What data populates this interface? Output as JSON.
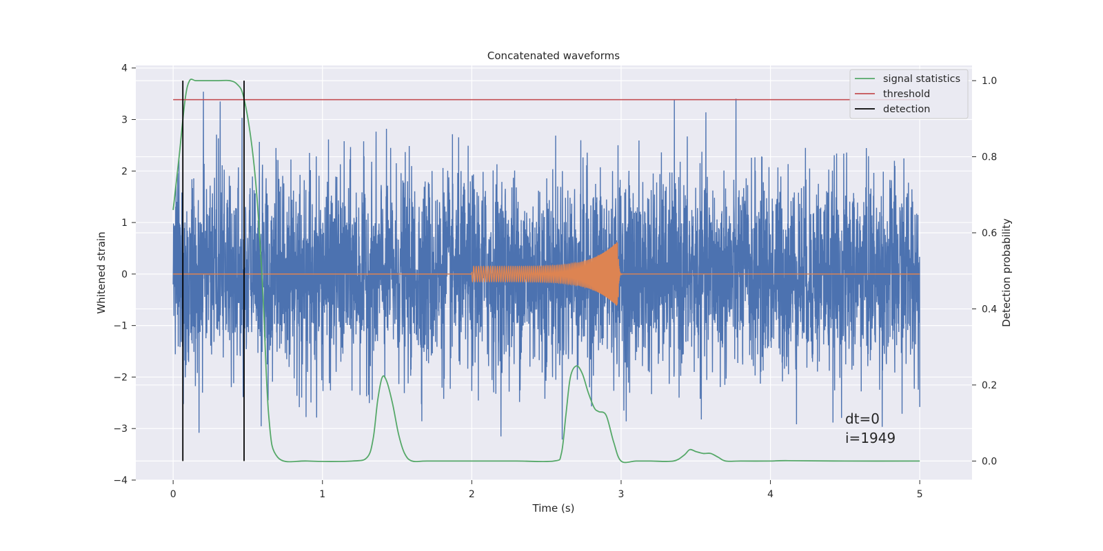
{
  "chart_data": {
    "type": "line",
    "title": "Concatenated waveforms",
    "xlabel": "Time (s)",
    "ylabel_left": "Whitened strain",
    "ylabel_right": "Detection probability",
    "xlim": [
      -0.25,
      5.35
    ],
    "ylim_left": [
      -4,
      4.05
    ],
    "ylim_right": [
      -0.05,
      1.04
    ],
    "x_ticks": [
      0,
      1,
      2,
      3,
      4,
      5
    ],
    "x_tick_labels": [
      "0",
      "1",
      "2",
      "3",
      "4",
      "5"
    ],
    "y_ticks_left": [
      -4,
      -3,
      -2,
      -1,
      0,
      1,
      2,
      3,
      4
    ],
    "y_tick_labels_left": [
      "−4",
      "−3",
      "−2",
      "−1",
      "0",
      "1",
      "2",
      "3",
      "4"
    ],
    "y_ticks_right": [
      0.0,
      0.2,
      0.4,
      0.6,
      0.8,
      1.0
    ],
    "y_tick_labels_right": [
      "0.0",
      "0.2",
      "0.4",
      "0.6",
      "0.8",
      "1.0"
    ],
    "grid": true,
    "legend_position": "top-right",
    "colors": {
      "background": "#eaeaf2",
      "grid": "#ffffff",
      "strain": "#4c72b0",
      "injected_signal": "#dd8452",
      "signal_statistics": "#55a868",
      "threshold": "#c44e52",
      "detection": "#000000"
    },
    "series": [
      {
        "name": "",
        "axis": "left",
        "kind": "noise",
        "x_range": [
          0,
          5
        ],
        "samples": 4096,
        "typical_range": [
          -2.2,
          2.2
        ],
        "extreme_range": [
          -3.7,
          3.7
        ]
      },
      {
        "name": "",
        "axis": "left",
        "kind": "chirp",
        "x_range": [
          2.0,
          3.0
        ],
        "start_amplitude": 0.15,
        "peak_amplitude": 0.65,
        "peak_time": 2.98
      },
      {
        "name": "signal statistics",
        "axis": "right",
        "x": [
          0.0,
          0.04,
          0.08,
          0.11,
          0.15,
          0.2,
          0.3,
          0.38,
          0.43,
          0.47,
          0.52,
          0.56,
          0.6,
          0.64,
          0.7,
          0.9,
          1.2,
          1.3,
          1.34,
          1.37,
          1.4,
          1.43,
          1.47,
          1.51,
          1.55,
          1.6,
          1.7,
          2.0,
          2.3,
          2.55,
          2.6,
          2.63,
          2.66,
          2.7,
          2.74,
          2.78,
          2.82,
          2.85,
          2.9,
          2.95,
          3.0,
          3.1,
          3.2,
          3.35,
          3.42,
          3.46,
          3.5,
          3.55,
          3.6,
          3.65,
          3.7,
          3.8,
          4.0,
          4.1,
          4.5,
          5.0
        ],
        "values": [
          0.66,
          0.8,
          0.95,
          1.0,
          1.0,
          1.0,
          1.0,
          1.0,
          0.99,
          0.96,
          0.85,
          0.7,
          0.45,
          0.12,
          0.01,
          0.0,
          0.0,
          0.01,
          0.06,
          0.16,
          0.22,
          0.21,
          0.15,
          0.07,
          0.02,
          0.0,
          0.0,
          0.0,
          0.0,
          0.0,
          0.02,
          0.12,
          0.22,
          0.25,
          0.23,
          0.18,
          0.14,
          0.13,
          0.12,
          0.05,
          0.0,
          0.0,
          0.0,
          0.0,
          0.015,
          0.03,
          0.025,
          0.02,
          0.02,
          0.01,
          0.0,
          0.0,
          0.0,
          0.001,
          0.0,
          0.0
        ]
      },
      {
        "name": "threshold",
        "axis": "right",
        "x": [
          0,
          5
        ],
        "values": [
          0.95,
          0.95
        ]
      },
      {
        "name": "detection",
        "axis": "right",
        "kind": "vertical_lines",
        "x": [
          0.065,
          0.475
        ],
        "y_span": [
          0.0,
          1.0
        ]
      }
    ],
    "legend": [
      "signal statistics",
      "threshold",
      "detection"
    ],
    "annotations": [
      "dt=0",
      "i=1949"
    ]
  }
}
